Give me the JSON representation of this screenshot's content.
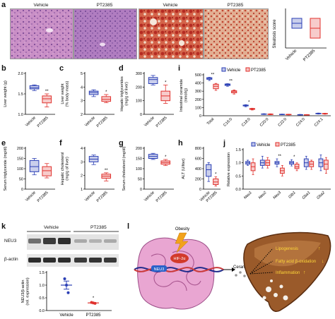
{
  "panels": {
    "a": {
      "letter": "a",
      "micro_titles": [
        "Vehicle",
        "PT2385",
        "Vehicle",
        "PT2385"
      ],
      "chart": {
        "ylabel": "Steatosis score",
        "categories": [
          "Vehicle",
          "PT2385"
        ],
        "colors": [
          "#2b3fb5",
          "#e0322e"
        ]
      }
    },
    "b": {
      "letter": "b",
      "ylabel": "Liver weight (g)",
      "yticks": [
        "1.0",
        "1.5",
        "2.0"
      ],
      "sig": "**"
    },
    "c": {
      "letter": "c",
      "ylabel": "Liver weight\n(% body mass)",
      "yticks": [
        "2",
        "3",
        "4",
        "5"
      ],
      "sig": "*"
    },
    "d": {
      "letter": "d",
      "ylabel": "Hepatic triglycerides\n(mg/g of liver)",
      "yticks": [
        "0",
        "100",
        "200",
        "300"
      ],
      "sig": "*"
    },
    "e": {
      "letter": "e",
      "ylabel": "Serum triglyceride (mg/dl)",
      "yticks": [
        "0",
        "50",
        "100",
        "150",
        "200"
      ],
      "sig": ""
    },
    "f": {
      "letter": "f",
      "ylabel": "Hepatic cholesterol\n(mg/g of liver)",
      "yticks": [
        "1",
        "2",
        "3",
        "4"
      ],
      "sig": "**"
    },
    "g": {
      "letter": "g",
      "ylabel": "Serum cholesterol (mg/dl)",
      "yticks": [
        "0",
        "50",
        "100",
        "150",
        "200"
      ],
      "sig": "*"
    },
    "h": {
      "letter": "h",
      "ylabel": "ALT (U/liter)",
      "yticks": [
        "0",
        "200",
        "400",
        "600",
        "800"
      ],
      "sig": "*"
    },
    "i": {
      "letter": "i",
      "ylabel": "Intestinal ceramide\n(nmol/g)",
      "yticks": [
        "0",
        "100",
        "200",
        "300",
        "400",
        "500"
      ],
      "legend": [
        "Vehicle",
        "PT2385"
      ],
      "categories": [
        "Total",
        "C16:0",
        "C18:0",
        "C20:0",
        "C22:0",
        "C24:0",
        "C24:1"
      ],
      "sig": [
        "**",
        "**",
        "*",
        "",
        "",
        "",
        ""
      ]
    },
    "j": {
      "letter": "j",
      "ylabel": "Relative expression",
      "yticks": [
        "0.0",
        "0.5",
        "1.0",
        "1.5"
      ],
      "legend": [
        "Vehicle",
        "PT2385"
      ],
      "categories": [
        "Neu1",
        "Neu2",
        "Neu3",
        "Glb1",
        "Gba1",
        "Gba2"
      ],
      "sig": [
        "",
        "",
        "**",
        "*",
        "",
        ""
      ]
    },
    "k": {
      "letter": "k",
      "group_labels": [
        "Vehicle",
        "PT2385"
      ],
      "band_labels": [
        "NEU3",
        "β-actin"
      ],
      "chart": {
        "ylabel": "NEU3/β-actin\n(rel. expression)",
        "yticks": [
          "0.0",
          "0.5",
          "1.0",
          "1.5"
        ],
        "categories": [
          "Vehicle",
          "PT2385"
        ],
        "sig": "*"
      }
    },
    "l": {
      "letter": "l",
      "labels": {
        "obesity": "Obesity",
        "hif": "HIF-2α",
        "neu3": "NEU3",
        "ceramides": "Ceramides",
        "lipogenesis": "Lipogenesis",
        "fao": "Fatty acid β-oxidation",
        "inflammation": "Inflammation"
      }
    }
  },
  "chart_data": [
    {
      "panel": "a",
      "type": "box",
      "ylabel": "Steatosis score",
      "categories": [
        "Vehicle",
        "PT2385"
      ],
      "ylim": [
        0,
        4
      ],
      "series": [
        {
          "name": "Vehicle",
          "min": 2.0,
          "q1": 2.0,
          "median": 2.5,
          "q3": 3.0,
          "max": 3.0
        },
        {
          "name": "PT2385",
          "min": 1.0,
          "q1": 1.0,
          "median": 2.0,
          "q3": 3.0,
          "max": 3.0
        }
      ]
    },
    {
      "panel": "b",
      "type": "box",
      "ylabel": "Liver weight (g)",
      "categories": [
        "Vehicle",
        "PT2385"
      ],
      "ylim": [
        1.0,
        2.0
      ],
      "series": [
        {
          "name": "Vehicle",
          "min": 1.58,
          "q1": 1.62,
          "median": 1.65,
          "q3": 1.7,
          "max": 1.72
        },
        {
          "name": "PT2385",
          "min": 1.18,
          "q1": 1.28,
          "median": 1.38,
          "q3": 1.45,
          "max": 1.5
        }
      ]
    },
    {
      "panel": "c",
      "type": "box",
      "ylabel": "Liver weight (% body mass)",
      "categories": [
        "Vehicle",
        "PT2385"
      ],
      "ylim": [
        2,
        5
      ],
      "series": [
        {
          "name": "Vehicle",
          "min": 3.3,
          "q1": 3.45,
          "median": 3.6,
          "q3": 3.7,
          "max": 3.8
        },
        {
          "name": "PT2385",
          "min": 2.85,
          "q1": 2.95,
          "median": 3.1,
          "q3": 3.3,
          "max": 3.45
        }
      ]
    },
    {
      "panel": "d",
      "type": "box",
      "ylabel": "Hepatic triglycerides (mg/g of liver)",
      "categories": [
        "Vehicle",
        "PT2385"
      ],
      "ylim": [
        0,
        300
      ],
      "series": [
        {
          "name": "Vehicle",
          "min": 215,
          "q1": 225,
          "median": 255,
          "q3": 270,
          "max": 285
        },
        {
          "name": "PT2385",
          "min": 80,
          "q1": 100,
          "median": 135,
          "q3": 170,
          "max": 215
        }
      ]
    },
    {
      "panel": "e",
      "type": "box",
      "ylabel": "Serum triglyceride (mg/dl)",
      "categories": [
        "Vehicle",
        "PT2385"
      ],
      "ylim": [
        0,
        200
      ],
      "series": [
        {
          "name": "Vehicle",
          "min": 70,
          "q1": 85,
          "median": 110,
          "q3": 140,
          "max": 150
        },
        {
          "name": "PT2385",
          "min": 55,
          "q1": 65,
          "median": 90,
          "q3": 110,
          "max": 125
        }
      ]
    },
    {
      "panel": "f",
      "type": "box",
      "ylabel": "Hepatic cholesterol (mg/g of liver)",
      "categories": [
        "Vehicle",
        "PT2385"
      ],
      "ylim": [
        1,
        4
      ],
      "series": [
        {
          "name": "Vehicle",
          "min": 2.8,
          "q1": 3.0,
          "median": 3.2,
          "q3": 3.4,
          "max": 3.5
        },
        {
          "name": "PT2385",
          "min": 1.6,
          "q1": 1.8,
          "median": 1.95,
          "q3": 2.1,
          "max": 2.2
        }
      ]
    },
    {
      "panel": "g",
      "type": "box",
      "ylabel": "Serum cholesterol (mg/dl)",
      "categories": [
        "Vehicle",
        "PT2385"
      ],
      "ylim": [
        0,
        200
      ],
      "series": [
        {
          "name": "Vehicle",
          "min": 145,
          "q1": 150,
          "median": 160,
          "q3": 170,
          "max": 175
        },
        {
          "name": "PT2385",
          "min": 115,
          "q1": 122,
          "median": 130,
          "q3": 138,
          "max": 145
        }
      ]
    },
    {
      "panel": "h",
      "type": "box",
      "ylabel": "ALT (U/liter)",
      "categories": [
        "Vehicle",
        "PT2385"
      ],
      "ylim": [
        0,
        800
      ],
      "series": [
        {
          "name": "Vehicle",
          "min": 150,
          "q1": 250,
          "median": 380,
          "q3": 480,
          "max": 520
        },
        {
          "name": "PT2385",
          "min": 60,
          "q1": 90,
          "median": 140,
          "q3": 200,
          "max": 240
        }
      ]
    },
    {
      "panel": "i",
      "type": "box",
      "ylabel": "Intestinal ceramide (nmol/g)",
      "ylim": [
        0,
        500
      ],
      "categories": [
        "Total",
        "C16:0",
        "C18:0",
        "C20:0",
        "C22:0",
        "C24:0",
        "C24:1"
      ],
      "series": [
        {
          "name": "Vehicle",
          "min": [
            430,
            360,
            110,
            15,
            12,
            8,
            20
          ],
          "q1": [
            445,
            370,
            120,
            18,
            14,
            10,
            24
          ],
          "median": [
            455,
            380,
            125,
            20,
            16,
            12,
            27
          ],
          "q3": [
            465,
            388,
            130,
            22,
            18,
            14,
            30
          ],
          "max": [
            470,
            392,
            135,
            25,
            20,
            16,
            33
          ]
        },
        {
          "name": "PT2385",
          "min": [
            310,
            265,
            70,
            12,
            10,
            7,
            18
          ],
          "q1": [
            330,
            280,
            78,
            15,
            12,
            9,
            22
          ],
          "median": [
            360,
            295,
            82,
            18,
            14,
            11,
            25
          ],
          "q3": [
            385,
            305,
            88,
            21,
            17,
            13,
            28
          ],
          "max": [
            395,
            315,
            92,
            24,
            19,
            15,
            31
          ]
        }
      ]
    },
    {
      "panel": "j",
      "type": "box",
      "ylabel": "Relative expression",
      "ylim": [
        0.0,
        1.5
      ],
      "categories": [
        "Neu1",
        "Neu2",
        "Neu3",
        "Glb1",
        "Gba1",
        "Gba2"
      ],
      "series": [
        {
          "name": "Vehicle",
          "min": [
            0.9,
            0.8,
            0.85,
            0.88,
            0.75,
            0.7
          ],
          "q1": [
            0.95,
            0.9,
            0.95,
            0.95,
            0.85,
            0.85
          ],
          "median": [
            1.0,
            1.0,
            1.0,
            1.0,
            1.0,
            1.0
          ],
          "q3": [
            1.05,
            1.1,
            1.05,
            1.05,
            1.15,
            1.15
          ],
          "max": [
            1.1,
            1.25,
            1.15,
            1.12,
            1.25,
            1.3
          ]
        },
        {
          "name": "PT2385",
          "min": [
            0.55,
            0.8,
            0.5,
            0.7,
            0.75,
            0.6
          ],
          "q1": [
            0.7,
            0.9,
            0.6,
            0.78,
            0.85,
            0.75
          ],
          "median": [
            0.85,
            1.0,
            0.7,
            0.85,
            0.95,
            0.95
          ],
          "q3": [
            1.0,
            1.1,
            0.8,
            0.95,
            1.05,
            1.1
          ],
          "max": [
            1.15,
            1.2,
            0.9,
            1.0,
            1.1,
            1.2
          ]
        }
      ]
    },
    {
      "panel": "k",
      "type": "scatter",
      "ylabel": "NEU3/β-actin (rel. expression)",
      "ylim": [
        0.0,
        1.5
      ],
      "categories": [
        "Vehicle",
        "PT2385"
      ],
      "series": [
        {
          "name": "Vehicle",
          "points": [
            1.25,
            1.0,
            0.7
          ],
          "mean": 1.0,
          "sem": 0.16
        },
        {
          "name": "PT2385",
          "points": [
            0.32,
            0.3,
            0.28
          ],
          "mean": 0.3,
          "sem": 0.02
        }
      ]
    }
  ],
  "colors": {
    "vehicle": "#2b3fb5",
    "pt2385": "#e0322e",
    "gut": "#e8a2cf",
    "liver": "#9a5a2a",
    "liver_dark": "#6b3616",
    "flash": "#f2a21b"
  }
}
